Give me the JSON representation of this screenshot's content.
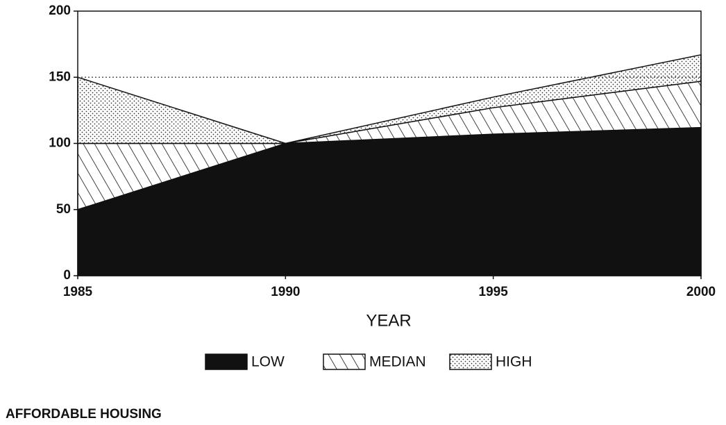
{
  "chart_data": {
    "type": "stacked_area",
    "x": [
      1985,
      1990,
      1995,
      2000
    ],
    "xlim": [
      1985,
      2000
    ],
    "xticks": [
      1985,
      1990,
      1995,
      2000
    ],
    "ylim": [
      0,
      200
    ],
    "yticks": [
      0,
      50,
      100,
      150,
      200
    ],
    "x_label": "YEAR",
    "reference_line": 150,
    "series": [
      {
        "name": "LOW",
        "color": "#111111",
        "pattern": "solid",
        "values": [
          50,
          100,
          107,
          112
        ]
      },
      {
        "name": "MEDIAN",
        "color": "#111111",
        "pattern": "hatch",
        "values": [
          50,
          0,
          20,
          35
        ]
      },
      {
        "name": "HIGH",
        "color": "#111111",
        "pattern": "dots",
        "values": [
          50,
          0,
          8,
          20
        ]
      }
    ],
    "legend": "bottom",
    "footer": "AFFORDABLE HOUSING"
  }
}
